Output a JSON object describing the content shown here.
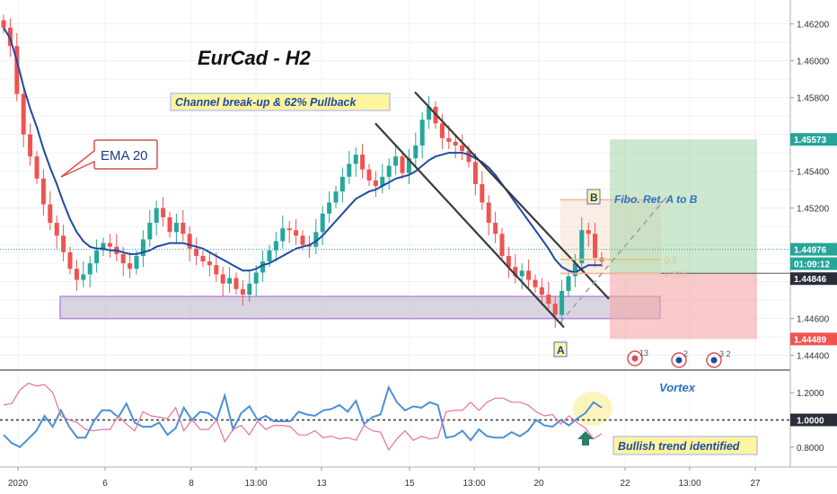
{
  "chart_data": [
    {
      "type": "candlestick",
      "title": "EurCad - H2",
      "symbol": "EURCAD",
      "timeframe": "H2",
      "x_tick_labels": [
        "2020",
        "6",
        "8",
        "13:00",
        "13",
        "15",
        "13:00",
        "20",
        "22",
        "13:00",
        "27"
      ],
      "y_tick_labels": [
        "1.46200",
        "1.46000",
        "1.45800",
        "1.45400",
        "1.45200",
        "1.44600",
        "1.44400"
      ],
      "ylim": [
        1.4433,
        1.4633
      ],
      "price_labels": [
        {
          "value": "1.45573",
          "color": "#26a69a"
        },
        {
          "value": "1.44976",
          "color": "#26a69a"
        },
        {
          "value": "01:09:12",
          "color": "#26a69a"
        },
        {
          "value": "1.44846",
          "color": "#2a2e39"
        },
        {
          "value": "1.44489",
          "color": "#ef5350"
        }
      ],
      "close_candles": [
        1.4618,
        1.4608,
        1.4582,
        1.456,
        1.4548,
        1.4536,
        1.4522,
        1.4512,
        1.4505,
        1.4496,
        1.4487,
        1.4481,
        1.4484,
        1.449,
        1.4497,
        1.4501,
        1.4499,
        1.4495,
        1.449,
        1.4487,
        1.4494,
        1.4503,
        1.4512,
        1.452,
        1.4515,
        1.4507,
        1.4512,
        1.4506,
        1.4498,
        1.4494,
        1.4491,
        1.4489,
        1.4484,
        1.4479,
        1.4482,
        1.4476,
        1.4473,
        1.4479,
        1.4485,
        1.4491,
        1.4497,
        1.4502,
        1.4509,
        1.4508,
        1.4505,
        1.45,
        1.4499,
        1.4507,
        1.4517,
        1.4523,
        1.4529,
        1.4537,
        1.4544,
        1.4549,
        1.4541,
        1.4535,
        1.4532,
        1.4537,
        1.4543,
        1.4548,
        1.4539,
        1.4547,
        1.4554,
        1.4568,
        1.4575,
        1.4566,
        1.4558,
        1.4556,
        1.4554,
        1.4551,
        1.4545,
        1.4533,
        1.4523,
        1.4512,
        1.4506,
        1.4494,
        1.4488,
        1.4483,
        1.4486,
        1.4481,
        1.4477,
        1.4473,
        1.4468,
        1.4462,
        1.4475,
        1.4483,
        1.449,
        1.4508,
        1.4506,
        1.4493,
        1.4491
      ],
      "ema20": [
        1.4618,
        1.4612,
        1.46,
        1.4586,
        1.4574,
        1.4564,
        1.4552,
        1.4542,
        1.4533,
        1.4523,
        1.4514,
        1.4507,
        1.4502,
        1.4499,
        1.4498,
        1.4498,
        1.4497,
        1.4497,
        1.4496,
        1.4495,
        1.4495,
        1.4496,
        1.4497,
        1.4499,
        1.45,
        1.4501,
        1.4501,
        1.4501,
        1.45,
        1.4499,
        1.4498,
        1.4496,
        1.4494,
        1.4492,
        1.449,
        1.4488,
        1.4486,
        1.4486,
        1.4487,
        1.4489,
        1.449,
        1.4492,
        1.4494,
        1.4496,
        1.4498,
        1.4499,
        1.45,
        1.4502,
        1.4505,
        1.4509,
        1.4513,
        1.4517,
        1.4521,
        1.4525,
        1.4527,
        1.4529,
        1.453,
        1.4532,
        1.4534,
        1.4536,
        1.4537,
        1.4538,
        1.454,
        1.4543,
        1.4546,
        1.4548,
        1.4549,
        1.455,
        1.455,
        1.455,
        1.4549,
        1.4547,
        1.4545,
        1.4542,
        1.4538,
        1.4533,
        1.4528,
        1.4523,
        1.4518,
        1.4513,
        1.4508,
        1.4503,
        1.4498,
        1.4492,
        1.4488,
        1.4486,
        1.4485,
        1.4487,
        1.4489,
        1.4489,
        1.4489
      ],
      "annotations": {
        "ema_label": "EMA 20",
        "channel_label": "Channel break-up & 62% Pullback",
        "fibo_label": "Fibo. Ret. A to B",
        "point_a": "A",
        "point_b": "B",
        "fib_levels": [
          {
            "level": "0",
            "price": 1.45245
          },
          {
            "level": "0.5",
            "price": 1.44921
          },
          {
            "level": "0.618",
            "price": 1.44845
          }
        ],
        "support_zone": [
          1.446,
          1.4472
        ],
        "position": {
          "target": 1.45573,
          "entry": 1.44846,
          "stop": 1.44489
        }
      }
    },
    {
      "type": "line",
      "title": "Vortex",
      "ylim": [
        0.66,
        1.36
      ],
      "y_tick_labels": [
        "1.2000",
        "1.0000",
        "0.8000"
      ],
      "reference_label": "1.0000",
      "reference_value": 1.0,
      "series": [
        {
          "name": "",
          "color": "#4a90d9",
          "values": [
            0.89,
            0.83,
            0.8,
            0.86,
            0.92,
            1.03,
            0.95,
            1.07,
            0.95,
            0.87,
            0.87,
            0.99,
            1.07,
            1.07,
            1.02,
            1.12,
            0.98,
            0.95,
            0.95,
            0.98,
            0.89,
            0.94,
            1.09,
            1.0,
            1.06,
            1.05,
            1.0,
            1.18,
            0.93,
            1.05,
            1.1,
            1.0,
            1.03,
            0.99,
            0.99,
            0.99,
            1.06,
            1.04,
            1.03,
            1.07,
            1.08,
            1.11,
            1.06,
            1.14,
            0.97,
            1.02,
            1.04,
            1.24,
            1.13,
            1.07,
            1.1,
            1.09,
            1.13,
            1.11,
            0.87,
            0.88,
            0.92,
            0.85,
            0.93,
            0.88,
            0.87,
            0.87,
            0.91,
            0.88,
            0.92,
            1.0,
            0.96,
            0.95,
            1.0,
            0.96,
            1.01,
            1.05,
            1.13,
            1.09
          ]
        },
        {
          "name": "",
          "color": "#e57398",
          "values": [
            1.11,
            1.12,
            1.22,
            1.27,
            1.25,
            1.26,
            1.2,
            1.03,
            1.0,
            0.98,
            0.93,
            0.92,
            0.93,
            0.93,
            1.03,
            0.97,
            0.92,
            1.06,
            1.03,
            1.02,
            1.01,
            1.09,
            0.92,
            1.0,
            0.93,
            0.93,
            1.0,
            0.84,
            0.93,
            0.96,
            0.89,
            0.99,
            0.93,
            0.96,
            0.96,
            0.95,
            0.89,
            0.89,
            0.92,
            0.87,
            0.88,
            0.86,
            0.87,
            0.85,
            0.96,
            0.92,
            0.91,
            0.78,
            0.86,
            0.92,
            0.85,
            0.88,
            0.86,
            0.87,
            1.06,
            1.07,
            1.07,
            1.13,
            1.07,
            1.13,
            1.16,
            1.16,
            1.13,
            1.13,
            1.11,
            1.06,
            1.03,
            1.04,
            0.97,
            1.03,
            0.98,
            0.94,
            0.86,
            0.9
          ]
        }
      ],
      "annotation": "Bullish trend identified"
    }
  ]
}
